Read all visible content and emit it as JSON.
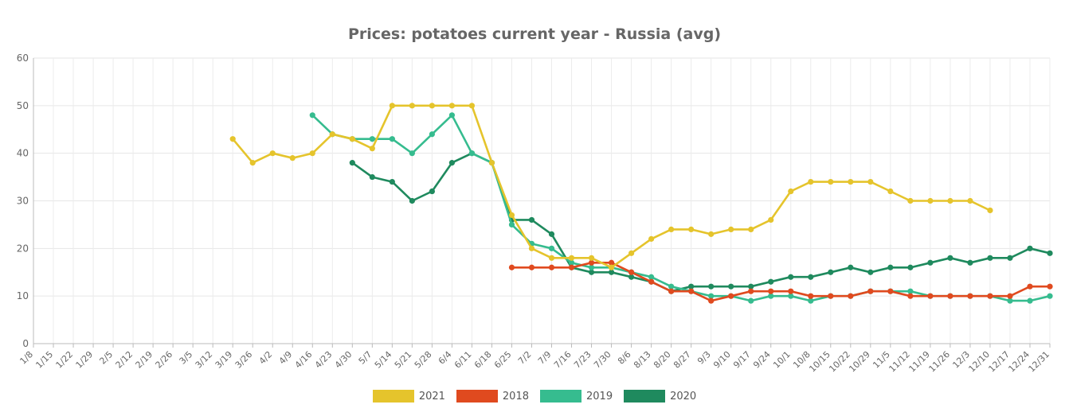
{
  "chart_data": {
    "type": "line",
    "title": "Prices: potatoes current year - Russia (avg)",
    "xlabel": "",
    "ylabel": "",
    "ylim": [
      0,
      60
    ],
    "yticks": [
      0,
      10,
      20,
      30,
      40,
      50,
      60
    ],
    "grid": true,
    "legend_position": "bottom",
    "categories": [
      "1/8",
      "1/15",
      "1/22",
      "1/29",
      "2/5",
      "2/12",
      "2/19",
      "2/26",
      "3/5",
      "3/12",
      "3/19",
      "3/26",
      "4/2",
      "4/9",
      "4/16",
      "4/23",
      "4/30",
      "5/7",
      "5/14",
      "5/21",
      "5/28",
      "6/4",
      "6/11",
      "6/18",
      "6/25",
      "7/2",
      "7/9",
      "7/16",
      "7/23",
      "7/30",
      "8/6",
      "8/13",
      "8/20",
      "8/27",
      "9/3",
      "9/10",
      "9/17",
      "9/24",
      "10/1",
      "10/8",
      "10/15",
      "10/22",
      "10/29",
      "11/5",
      "11/12",
      "11/19",
      "11/26",
      "12/3",
      "12/10",
      "12/17",
      "12/24",
      "12/31"
    ],
    "series": [
      {
        "name": "2021",
        "color": "#e5c42c",
        "values": [
          null,
          null,
          null,
          null,
          null,
          null,
          null,
          null,
          null,
          null,
          43,
          38,
          40,
          39,
          40,
          44,
          43,
          41,
          50,
          50,
          50,
          50,
          50,
          38,
          27,
          20,
          18,
          18,
          18,
          16,
          19,
          22,
          24,
          24,
          23,
          24,
          24,
          26,
          32,
          34,
          34,
          34,
          34,
          32,
          30,
          30,
          30,
          30,
          28,
          null,
          null,
          null
        ]
      },
      {
        "name": "2018",
        "color": "#e04a1f",
        "values": [
          null,
          null,
          null,
          null,
          null,
          null,
          null,
          null,
          null,
          null,
          null,
          null,
          null,
          null,
          null,
          null,
          null,
          null,
          null,
          null,
          null,
          null,
          null,
          null,
          16,
          16,
          16,
          16,
          17,
          17,
          15,
          13,
          11,
          11,
          9,
          10,
          11,
          11,
          11,
          10,
          10,
          10,
          11,
          11,
          10,
          10,
          10,
          10,
          10,
          10,
          12,
          12
        ]
      },
      {
        "name": "2019",
        "color": "#36bc8f",
        "values": [
          null,
          null,
          null,
          null,
          null,
          null,
          null,
          null,
          null,
          null,
          null,
          null,
          null,
          null,
          48,
          44,
          43,
          43,
          43,
          40,
          44,
          48,
          40,
          38,
          25,
          21,
          20,
          17,
          16,
          16,
          15,
          14,
          12,
          11,
          10,
          10,
          9,
          10,
          10,
          9,
          10,
          10,
          11,
          11,
          11,
          10,
          10,
          10,
          10,
          9,
          9,
          10
        ]
      },
      {
        "name": "2020",
        "color": "#1f8a5e",
        "values": [
          null,
          null,
          null,
          null,
          null,
          null,
          null,
          null,
          null,
          null,
          null,
          null,
          null,
          null,
          null,
          null,
          38,
          35,
          34,
          30,
          32,
          38,
          40,
          38,
          26,
          26,
          23,
          16,
          15,
          15,
          14,
          13,
          11,
          12,
          12,
          12,
          12,
          13,
          14,
          14,
          15,
          16,
          15,
          16,
          16,
          17,
          18,
          17,
          18,
          18,
          20,
          19
        ]
      }
    ]
  }
}
